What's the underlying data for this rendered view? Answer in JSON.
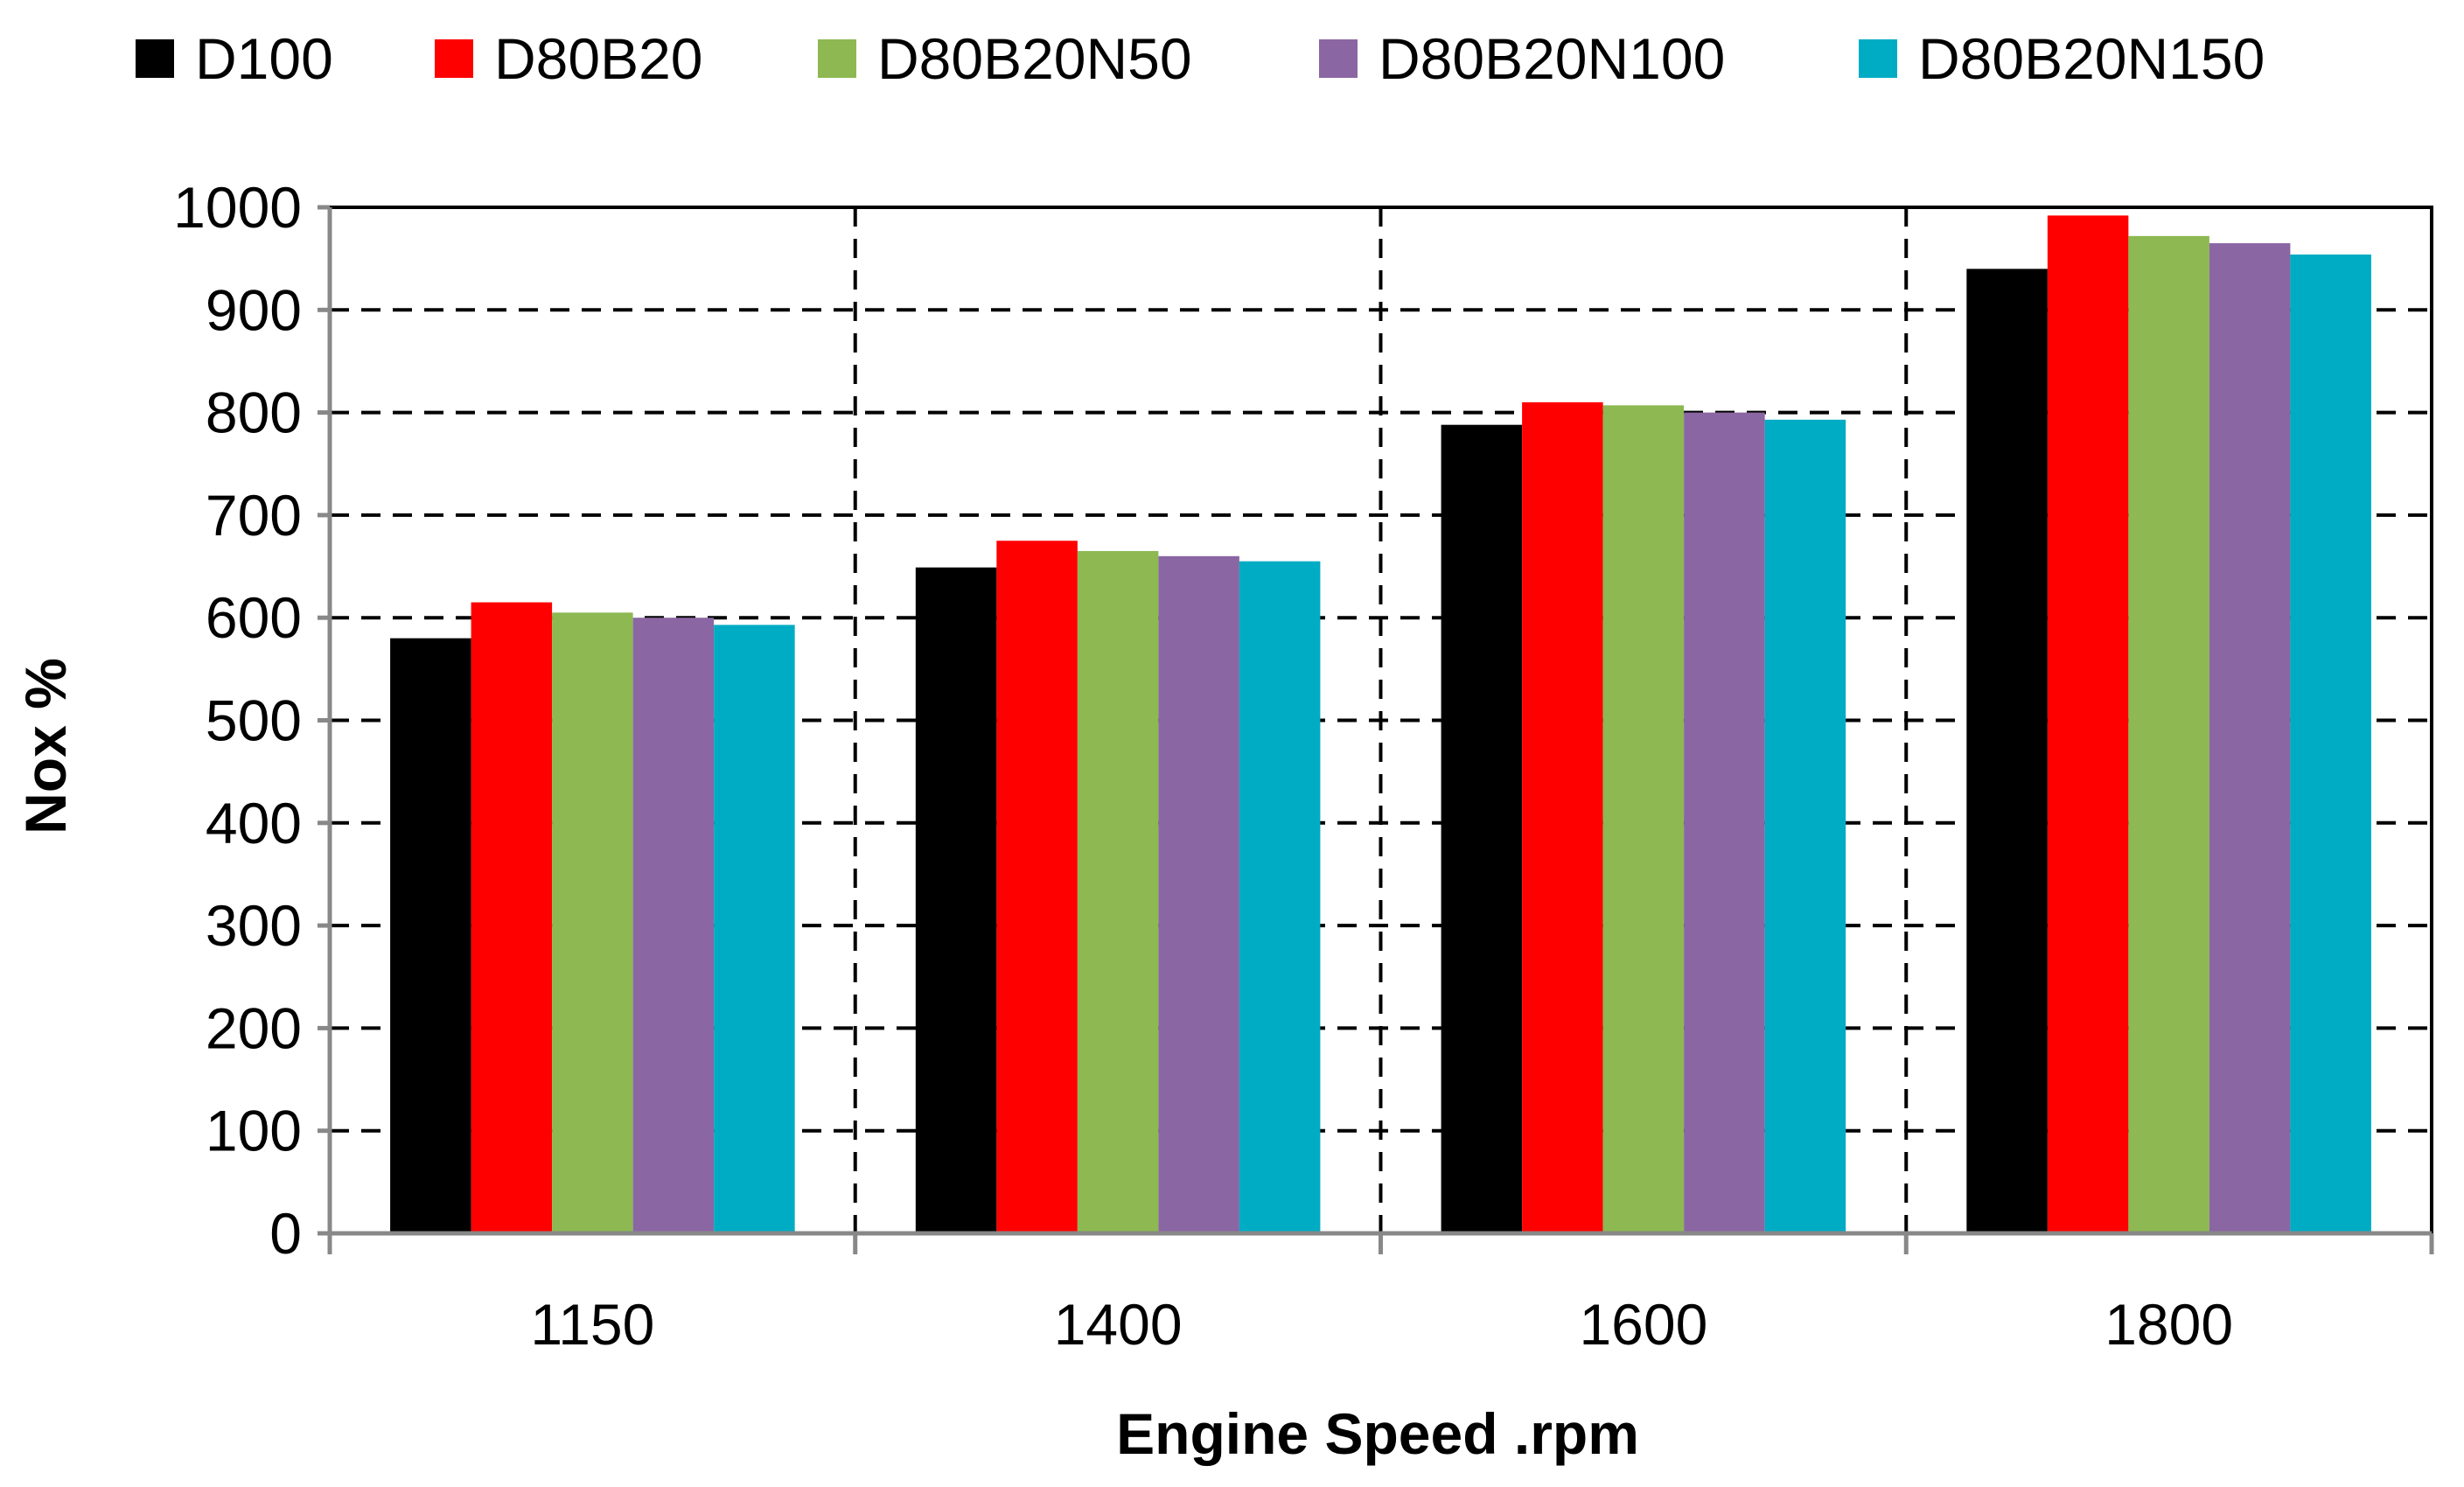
{
  "chart_data": {
    "type": "bar",
    "title": "",
    "xlabel": "Engine Speed .rpm",
    "ylabel": "Nox %",
    "categories": [
      "1150",
      "1400",
      "1600",
      "1800"
    ],
    "ylim": [
      0,
      1000
    ],
    "yticks": [
      0,
      100,
      200,
      300,
      400,
      500,
      600,
      700,
      800,
      900,
      1000
    ],
    "grid": true,
    "legend_position": "top",
    "series": [
      {
        "name": "D100",
        "color": "#000000",
        "values": [
          580,
          649,
          788,
          940
        ]
      },
      {
        "name": "D80B20",
        "color": "#ff0000",
        "values": [
          615,
          675,
          810,
          992
        ]
      },
      {
        "name": "D80B20N50",
        "color": "#8db852",
        "values": [
          605,
          665,
          807,
          972
        ]
      },
      {
        "name": "D80B20N100",
        "color": "#8a66a3",
        "values": [
          600,
          660,
          800,
          965
        ]
      },
      {
        "name": "D80B20N150",
        "color": "#00acc4",
        "values": [
          593,
          655,
          793,
          954
        ]
      }
    ]
  }
}
